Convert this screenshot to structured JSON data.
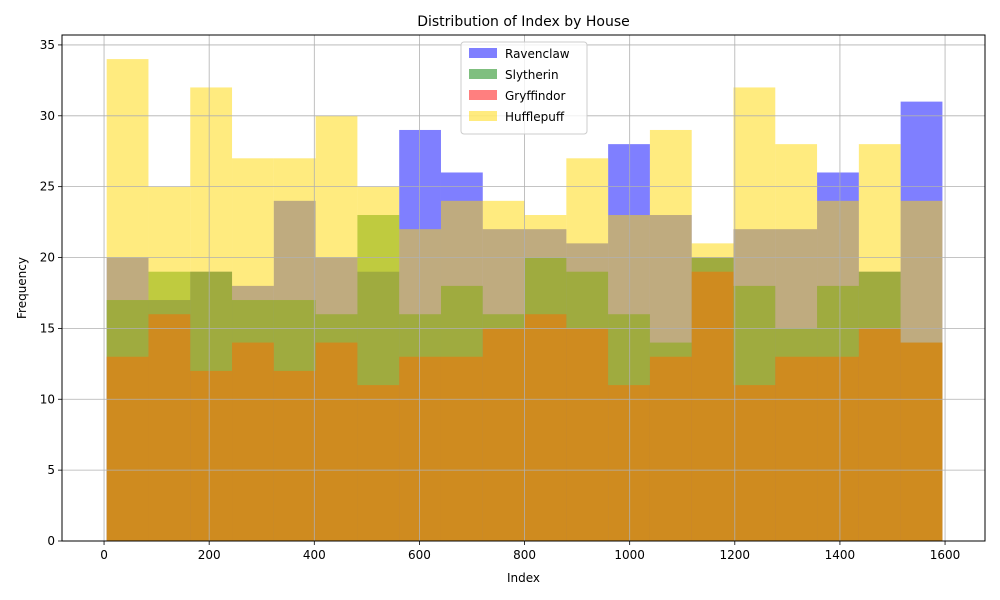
{
  "chart_data": {
    "type": "bar",
    "subtype": "overlapping-histogram",
    "title": "Distribution of Index by House",
    "xlabel": "Index",
    "ylabel": "Frequency",
    "xlim": [
      -80,
      1676
    ],
    "ylim": [
      0,
      35.7
    ],
    "xticks": [
      0,
      200,
      400,
      600,
      800,
      1000,
      1200,
      1400,
      1600
    ],
    "yticks": [
      0,
      5,
      10,
      15,
      20,
      25,
      30,
      35
    ],
    "grid": true,
    "legend_position": "top-center",
    "bin_edges": [
      5,
      84.5,
      164,
      243.5,
      323,
      402.5,
      482,
      561.5,
      641,
      720.5,
      800,
      879.5,
      959,
      1038.5,
      1118,
      1197.5,
      1277,
      1356.5,
      1436,
      1515.5,
      1595
    ],
    "series": [
      {
        "name": "Ravenclaw",
        "color": "#0000ff",
        "opacity": 0.5,
        "values": [
          20,
          17,
          19,
          18,
          24,
          20,
          19,
          29,
          26,
          22,
          22,
          21,
          28,
          23,
          20,
          22,
          22,
          26,
          19,
          31
        ]
      },
      {
        "name": "Slytherin",
        "color": "#008000",
        "opacity": 0.5,
        "values": [
          17,
          19,
          19,
          17,
          17,
          16,
          23,
          16,
          18,
          16,
          20,
          19,
          16,
          14,
          20,
          18,
          15,
          18,
          19,
          14
        ]
      },
      {
        "name": "Gryffindor",
        "color": "#ff0000",
        "opacity": 0.5,
        "values": [
          13,
          16,
          12,
          14,
          12,
          14,
          11,
          13,
          13,
          15,
          16,
          15,
          11,
          13,
          19,
          11,
          13,
          13,
          15,
          14
        ]
      },
      {
        "name": "Hufflepuff",
        "color": "#ffd700",
        "opacity": 0.5,
        "values": [
          34,
          25,
          32,
          27,
          27,
          30,
          25,
          22,
          24,
          24,
          23,
          27,
          23,
          29,
          21,
          32,
          28,
          24,
          28,
          24
        ]
      }
    ]
  }
}
